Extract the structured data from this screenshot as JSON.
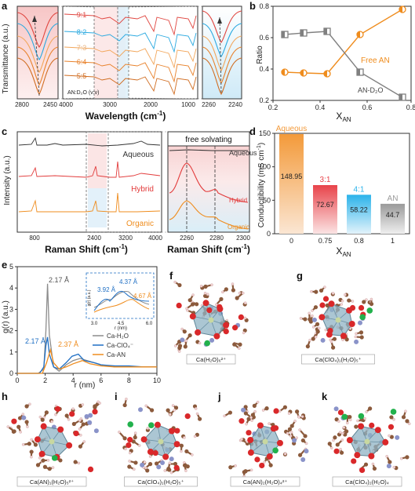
{
  "panels": {
    "a": {
      "label": "a",
      "ylabel": "Transmittance (a.u.)",
      "xlabel": "Wavelength (cm",
      "xlabel_sup": "-1",
      "xlabel_end": ")",
      "left_ticks": [
        "2800",
        "2450"
      ],
      "mid_ticks": [
        "4000",
        "3000",
        "2000",
        "1000"
      ],
      "right_ticks": [
        "2260",
        "2240"
      ],
      "ratios": [
        "9:1",
        "8:2",
        "7:3",
        "6:4",
        "5:5"
      ],
      "ratio_colors": [
        "#e0453f",
        "#29a9e0",
        "#f2a65a",
        "#e8812a",
        "#d06c20"
      ],
      "legend_note": "AN:D₂O (v:v)"
    },
    "b": {
      "label": "b",
      "free_label": "Free AN",
      "an_label": "AN-D₂O",
      "ylabel": "Ratio",
      "xlabel": "X",
      "xlabel_sub": "AN"
    },
    "c": {
      "label": "c",
      "ylabel": "Intensity (a.u.)",
      "xlabel": "Raman Shift (cm",
      "xlabel_sup": "-1",
      "xlabel_end": ")",
      "left_ticks": [
        "800",
        "2400",
        "3200",
        "4000"
      ],
      "series": [
        "Aqueous",
        "Hybrid",
        "Organic"
      ],
      "series_colors": [
        "#333333",
        "#e23b3b",
        "#ef8c1d"
      ],
      "right_header": "free solvating",
      "right_ticks": [
        "2260",
        "2280",
        "2300"
      ],
      "right_labels": [
        "Aqueous",
        "Hybrid",
        "Organic"
      ]
    },
    "d": {
      "label": "d",
      "ylabel": "Conducitibility (mS cm",
      "ylabel_sup": "-1",
      "ylabel_end": ")",
      "xlabel": "X",
      "xlabel_sub": "AN"
    },
    "e": {
      "label": "e",
      "ylabel": "g(r) (a.u.)",
      "xlabel": "r (nm)",
      "annot_top": "2.17 Å",
      "annot_left": "2.17 Å",
      "annot_mid": "2.37 Å",
      "inset_a": "4.37 Å",
      "inset_b": "3.92 Å",
      "inset_c": "4.67 Å",
      "inset_ylabel": "g(r) (a.u.)",
      "inset_xlabel": "r (nm)",
      "inset_ticks": [
        "3.0",
        "4.5",
        "6.0"
      ],
      "legend": [
        "Ca-H₂O",
        "Ca-ClO₄⁻",
        "Ca-AN"
      ],
      "legend_colors": [
        "#8c8c8c",
        "#1f6fc4",
        "#ef8c1d"
      ]
    },
    "structures": [
      {
        "label": "f",
        "formula": "Ca(H₂O)₆²⁺"
      },
      {
        "label": "g",
        "formula": "Ca(ClO₄)₁(H₂O)₅⁺"
      },
      {
        "label": "h",
        "formula": "Ca(AN)₁(H₂O)₅²⁺"
      },
      {
        "label": "i",
        "formula": "Ca(ClO₄)₁(H₂O)₅⁺"
      },
      {
        "label": "j",
        "formula": "Ca(AN)₂(H₂O)₄²⁺"
      },
      {
        "label": "k",
        "formula": "Ca(ClO₄)₂(H₂O)₄"
      }
    ]
  },
  "chart_data": [
    {
      "type": "line",
      "panel": "b",
      "xlabel": "X_AN",
      "ylabel": "Ratio",
      "xlim": [
        0.2,
        0.8
      ],
      "ylim": [
        0.2,
        0.8
      ],
      "x_ticks": [
        0.2,
        0.4,
        0.6,
        0.8
      ],
      "y_ticks": [
        0.2,
        0.4,
        0.6,
        0.8
      ],
      "series": [
        {
          "name": "Free AN",
          "color": "#ef8c1d",
          "x": [
            0.25,
            0.33,
            0.43,
            0.57,
            0.75
          ],
          "values": [
            0.38,
            0.375,
            0.37,
            0.62,
            0.78
          ]
        },
        {
          "name": "AN-D₂O",
          "color": "#808080",
          "x": [
            0.25,
            0.33,
            0.43,
            0.57,
            0.75
          ],
          "values": [
            0.62,
            0.63,
            0.64,
            0.38,
            0.22
          ]
        }
      ]
    },
    {
      "type": "bar",
      "panel": "d",
      "xlabel": "X_AN",
      "ylabel": "Conducitibility (mS cm-1)",
      "ylim": [
        0,
        150
      ],
      "y_ticks": [
        0,
        50,
        100,
        150
      ],
      "categories": [
        "0",
        "0.75",
        "0.8",
        "1"
      ],
      "values": [
        148.95,
        72.67,
        58.22,
        44.7
      ],
      "bar_tags": [
        "Aqueous",
        "3:1",
        "4:1",
        "AN"
      ],
      "colors": [
        "#f39a3a",
        "#e8434a",
        "#2bb3ea",
        "#9a9a9a"
      ]
    },
    {
      "type": "line",
      "panel": "e",
      "xlabel": "r (nm)",
      "ylabel": "g(r) (a.u.)",
      "xlim": [
        0,
        10
      ],
      "ylim": [
        0,
        5
      ],
      "x_ticks": [
        0,
        2,
        4,
        6,
        8,
        10
      ],
      "y_ticks": [
        0,
        1,
        2,
        3,
        4,
        5
      ],
      "series": [
        {
          "name": "Ca-H₂O",
          "color": "#8c8c8c",
          "x": [
            0,
            1.5,
            1.9,
            2.05,
            2.17,
            2.3,
            2.6,
            3.0,
            3.5,
            4.0,
            4.5,
            5,
            6,
            7,
            8,
            9,
            10
          ],
          "values": [
            0,
            0,
            0.2,
            2.0,
            4.2,
            1.8,
            0.3,
            0.1,
            0.4,
            0.6,
            0.7,
            0.6,
            0.4,
            0.3,
            0.3,
            0.3,
            0.3
          ]
        },
        {
          "name": "Ca-ClO₄⁻",
          "color": "#1f6fc4",
          "x": [
            0,
            1.6,
            1.9,
            2.05,
            2.17,
            2.3,
            2.6,
            3.0,
            3.5,
            3.92,
            4.37,
            4.8,
            5.5,
            6,
            7,
            8,
            9,
            10
          ],
          "values": [
            0,
            0,
            0.3,
            1.3,
            1.7,
            0.9,
            0.3,
            0.2,
            0.5,
            0.8,
            0.9,
            0.6,
            0.5,
            0.4,
            0.35,
            0.35,
            0.3,
            0.3
          ]
        },
        {
          "name": "Ca-AN",
          "color": "#ef8c1d",
          "x": [
            0,
            1.8,
            2.1,
            2.37,
            2.6,
            3.0,
            3.5,
            4.0,
            4.67,
            5.2,
            6,
            7,
            8,
            9,
            10
          ],
          "values": [
            0,
            0,
            0.5,
            1.1,
            0.5,
            0.2,
            0.3,
            0.45,
            0.6,
            0.45,
            0.35,
            0.3,
            0.3,
            0.3,
            0.3
          ]
        }
      ]
    }
  ]
}
